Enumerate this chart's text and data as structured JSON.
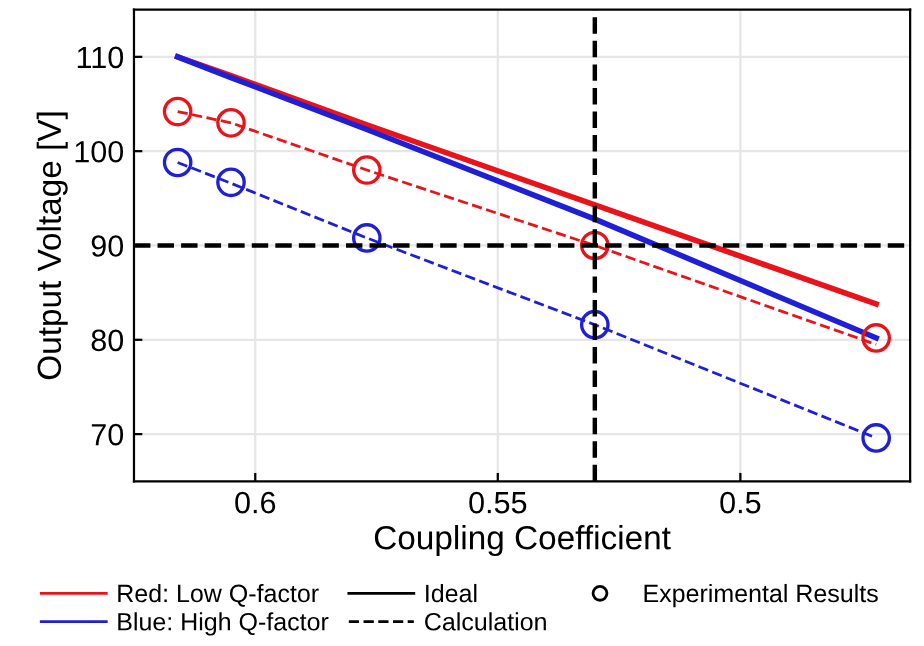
{
  "chart_data": {
    "type": "line",
    "xlabel": "Coupling Coefficient",
    "ylabel": "Output Voltage [V]",
    "x": [
      0.616,
      0.605,
      0.577,
      0.53,
      0.472
    ],
    "series": [
      {
        "name": "Red: Low Q-factor",
        "color": "#e8141c",
        "line_style": "solid",
        "marker": "none",
        "values": [
          110.0,
          108.0,
          102.8,
          94.3,
          83.8
        ]
      },
      {
        "name": "Blue: High Q-factor",
        "color": "#1f1fd6",
        "line_style": "solid",
        "marker": "none",
        "values": [
          110.0,
          107.8,
          102.3,
          92.8,
          80.2
        ]
      },
      {
        "color": "#e8141c",
        "type": "line",
        "line_style": "dashed",
        "marker": "none",
        "values": [
          104.2,
          103.0,
          98.0,
          90.0,
          79.5
        ]
      },
      {
        "color": "#1f1fd6",
        "type": "line",
        "line_style": "dashed",
        "marker": "none",
        "values": [
          98.8,
          96.6,
          90.8,
          81.6,
          69.6
        ]
      },
      {
        "color": "#e8141c",
        "type": "scatter",
        "marker": "circle",
        "values": [
          104.2,
          103.0,
          98.0,
          90.0,
          80.2
        ]
      },
      {
        "color": "#1f1fd6",
        "type": "scatter",
        "marker": "circle",
        "values": [
          98.8,
          96.7,
          90.8,
          81.6,
          69.6
        ]
      }
    ],
    "xlim": [
      0.625,
      0.465
    ],
    "xticks": [
      0.6,
      0.55,
      0.5
    ],
    "ylim": [
      65,
      115
    ],
    "yticks": [
      70,
      80,
      90,
      100,
      110
    ],
    "grid": true,
    "legend": "bottom",
    "annotations": [
      "Ideal",
      "Calculation",
      "Experimental Results"
    ],
    "ref_lines": [
      {
        "axis": "y",
        "value": 90,
        "color": "#000000",
        "line_style": "dashed"
      },
      {
        "axis": "x",
        "value": 0.53,
        "color": "#000000",
        "line_style": "dashed"
      }
    ]
  }
}
